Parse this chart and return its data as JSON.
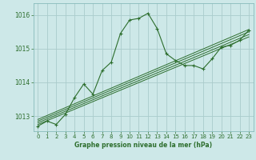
{
  "xlabel": "Graphe pression niveau de la mer (hPa)",
  "bg_color": "#cde8e8",
  "grid_color": "#aacccc",
  "line_color": "#2d6e2d",
  "xlim": [
    -0.5,
    23.5
  ],
  "ylim": [
    1012.55,
    1016.35
  ],
  "yticks": [
    1013,
    1014,
    1015,
    1016
  ],
  "xticks": [
    0,
    1,
    2,
    3,
    4,
    5,
    6,
    7,
    8,
    9,
    10,
    11,
    12,
    13,
    14,
    15,
    16,
    17,
    18,
    19,
    20,
    21,
    22,
    23
  ],
  "series": [
    {
      "x": [
        0,
        1,
        2,
        3,
        4,
        5,
        6,
        7,
        8,
        9,
        10,
        11,
        12,
        13,
        14,
        15,
        16,
        17,
        18,
        19,
        20,
        21,
        22,
        23
      ],
      "y": [
        1012.7,
        1012.85,
        1012.75,
        1013.05,
        1013.55,
        1013.95,
        1013.65,
        1014.35,
        1014.6,
        1015.45,
        1015.85,
        1015.9,
        1016.05,
        1015.6,
        1014.85,
        1014.65,
        1014.5,
        1014.5,
        1014.4,
        1014.7,
        1015.05,
        1015.1,
        1015.25,
        1015.55
      ],
      "marker": true
    },
    {
      "x": [
        0,
        23
      ],
      "y": [
        1012.75,
        1015.35
      ],
      "marker": false
    },
    {
      "x": [
        0,
        23
      ],
      "y": [
        1012.8,
        1015.42
      ],
      "marker": false
    },
    {
      "x": [
        0,
        23
      ],
      "y": [
        1012.85,
        1015.5
      ],
      "marker": false
    },
    {
      "x": [
        0,
        23
      ],
      "y": [
        1012.9,
        1015.57
      ],
      "marker": false
    }
  ]
}
